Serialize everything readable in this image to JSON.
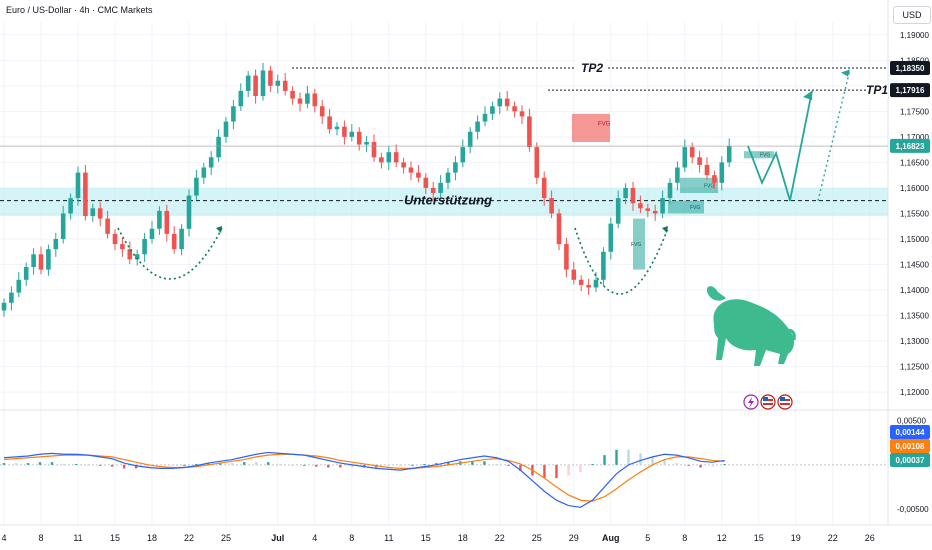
{
  "header": {
    "title": "Euro / US-Dollar · 4h · CMC Markets",
    "currency": "USD"
  },
  "colors": {
    "up": "#26a69a",
    "down": "#ef5350",
    "zone": "#b2ebf2",
    "bull": "#3dbb8f",
    "macd": "#2962ff",
    "signal": "#ff7f0e"
  },
  "icons": [
    "bull-icon",
    "lightning-icon",
    "flag-us-icon",
    "flag-us-icon"
  ],
  "chart_data": {
    "type": "candlestick",
    "price_axis": {
      "ticks": [
        "1,19000",
        "1,18500",
        "1,18000",
        "1,17500",
        "1,17000",
        "1,16500",
        "1,16000",
        "1,15500",
        "1,15000",
        "1,14500",
        "1,14000",
        "1,13500",
        "1,13000",
        "1,12500",
        "1,12000"
      ],
      "tick_values": [
        1.19,
        1.185,
        1.18,
        1.175,
        1.17,
        1.165,
        1.16,
        1.155,
        1.15,
        1.145,
        1.14,
        1.135,
        1.13,
        1.125,
        1.12
      ],
      "range": [
        1.1165,
        1.1925
      ],
      "badges": [
        {
          "value": 1.1835,
          "label": "1,18350",
          "style": "dark"
        },
        {
          "value": 1.17916,
          "label": "1,17916",
          "style": "dark"
        },
        {
          "value": 1.16823,
          "label": "1,16823",
          "style": "green"
        }
      ]
    },
    "date_axis": {
      "labels": [
        "4",
        "8",
        "11",
        "15",
        "18",
        "22",
        "25",
        "Jul",
        "4",
        "8",
        "11",
        "15",
        "18",
        "22",
        "25",
        "29",
        "Aug",
        "5",
        "8",
        "12",
        "15",
        "19",
        "22",
        "26"
      ],
      "bar_index": [
        0,
        5,
        10,
        15,
        20,
        25,
        30,
        37,
        42,
        47,
        52,
        57,
        62,
        67,
        72,
        77,
        82,
        87,
        92,
        97,
        102,
        107,
        112,
        117
      ],
      "bold": [
        "Jul",
        "Aug"
      ]
    },
    "closes": [
      1.1375,
      1.1395,
      1.142,
      1.1445,
      1.147,
      1.144,
      1.148,
      1.15,
      1.155,
      1.158,
      1.163,
      1.1545,
      1.156,
      1.154,
      1.151,
      1.149,
      1.148,
      1.146,
      1.147,
      1.15,
      1.152,
      1.1555,
      1.151,
      1.148,
      1.152,
      1.1585,
      1.162,
      1.164,
      1.166,
      1.17,
      1.173,
      1.176,
      1.179,
      1.182,
      1.178,
      1.183,
      1.18,
      1.181,
      1.179,
      1.1775,
      1.1765,
      1.1785,
      1.176,
      1.174,
      1.1715,
      1.172,
      1.17,
      1.171,
      1.1685,
      1.169,
      1.166,
      1.165,
      1.167,
      1.165,
      1.164,
      1.163,
      1.162,
      1.16,
      1.159,
      1.161,
      1.163,
      1.165,
      1.168,
      1.171,
      1.173,
      1.1745,
      1.176,
      1.1775,
      1.176,
      1.175,
      1.174,
      1.168,
      1.162,
      1.158,
      1.155,
      1.149,
      1.144,
      1.142,
      1.141,
      1.1405,
      1.142,
      1.1475,
      1.153,
      1.158,
      1.16,
      1.157,
      1.156,
      1.1555,
      1.155,
      1.158,
      1.161,
      1.164,
      1.168,
      1.166,
      1.1645,
      1.1625,
      1.161,
      1.165,
      1.1682
    ],
    "series": [
      {
        "name": "MACD",
        "values": [
          0.0008,
          0.0009,
          0.001,
          0.0012,
          0.0013,
          0.0012,
          0.0012,
          0.0011,
          0.0009,
          0.0007,
          0.0002,
          -0.0001,
          -0.0003,
          -0.0004,
          -0.0004,
          -0.0003,
          -0.0001,
          0.0002,
          0.0004,
          0.0006,
          0.0009,
          0.0012,
          0.0014,
          0.0013,
          0.0012,
          0.0011,
          0.0008,
          0.0005,
          0.0002,
          0.0,
          -0.0002,
          -0.0004,
          -0.0005,
          -0.0006,
          -0.0004,
          -0.0002,
          0.0,
          0.0003,
          0.0006,
          0.0008,
          0.001,
          0.0008,
          0.0004,
          -0.0006,
          -0.0018,
          -0.003,
          -0.004,
          -0.0046,
          -0.0048,
          -0.004,
          -0.0025,
          -0.001,
          0.0,
          0.0005,
          0.0009,
          0.0012,
          0.0011,
          0.0008,
          0.0004,
          0.0003,
          0.0005
        ]
      },
      {
        "name": "Signal",
        "values": [
          0.0006,
          0.0007,
          0.0008,
          0.0009,
          0.001,
          0.0011,
          0.0011,
          0.0011,
          0.001,
          0.0009,
          0.0006,
          0.0003,
          0.0,
          -0.0002,
          -0.0003,
          -0.0003,
          -0.0002,
          0.0,
          0.0002,
          0.0004,
          0.0006,
          0.0009,
          0.0011,
          0.0012,
          0.0012,
          0.0011,
          0.001,
          0.0008,
          0.0005,
          0.0003,
          0.0001,
          -0.0001,
          -0.0003,
          -0.0004,
          -0.0004,
          -0.0003,
          -0.0002,
          0.0,
          0.0002,
          0.0004,
          0.0006,
          0.0007,
          0.0005,
          0.0001,
          -0.0006,
          -0.0015,
          -0.0025,
          -0.0034,
          -0.004,
          -0.0041,
          -0.0036,
          -0.0027,
          -0.0017,
          -0.0008,
          0.0,
          0.0006,
          0.0009,
          0.0009,
          0.0007,
          0.0005,
          0.0004
        ]
      }
    ],
    "macd_axis": {
      "ticks": [
        "0,00500",
        "-0,00500"
      ],
      "tick_values": [
        0.005,
        -0.005
      ],
      "range": [
        -0.0068,
        0.0062
      ],
      "badges": [
        {
          "value": 0.00144,
          "label": "0,00144",
          "color": "#2962ff"
        },
        {
          "value": 0.00108,
          "label": "0,00108",
          "color": "#ff7f0e"
        },
        {
          "value": 0.00037,
          "label": "0,00037",
          "color": "#26a69a"
        }
      ]
    },
    "annotations": [
      {
        "text": "TP2",
        "value": 1.1835
      },
      {
        "text": "TP1",
        "value": 1.17916
      },
      {
        "text": "Unterstützung",
        "value": 1.1575
      },
      {
        "text": "FVG"
      }
    ],
    "grid": true,
    "legend": "none"
  }
}
